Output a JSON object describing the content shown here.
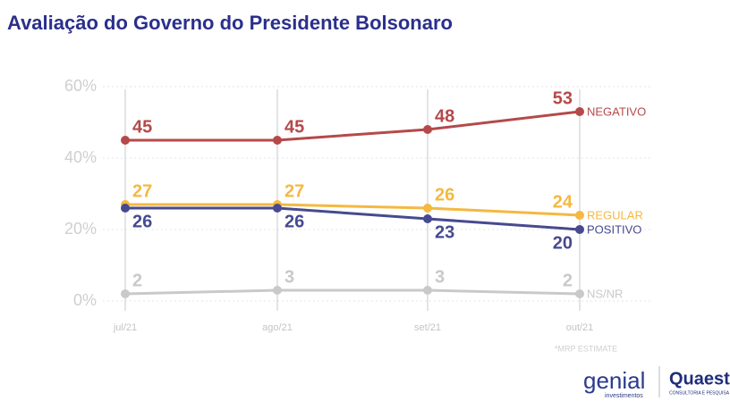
{
  "chart_data": {
    "type": "line",
    "title": "Avaliação do Governo do Presidente Bolsonaro",
    "categories": [
      "jul/21",
      "ago/21",
      "set/21",
      "out/21"
    ],
    "series": [
      {
        "name": "NEGATIVO",
        "color": "#b5494a",
        "values": [
          45,
          45,
          48,
          53
        ]
      },
      {
        "name": "REGULAR",
        "color": "#f5b841",
        "values": [
          27,
          27,
          26,
          24
        ]
      },
      {
        "name": "POSITIVO",
        "color": "#474a8f",
        "values": [
          26,
          26,
          23,
          20
        ]
      },
      {
        "name": "NS/NR",
        "color": "#c9c9c9",
        "values": [
          2,
          3,
          3,
          2
        ]
      }
    ],
    "ylim": [
      0,
      60
    ],
    "yticks": [
      {
        "value": 0,
        "label": "0%"
      },
      {
        "value": 20,
        "label": "20%"
      },
      {
        "value": 40,
        "label": "40%"
      },
      {
        "value": 60,
        "label": "60%"
      }
    ],
    "grid": true,
    "note": "*MRP ESTIMATE",
    "logos": {
      "left": "genial",
      "left_sub": "investimentos",
      "right": "Quaest",
      "right_sub": "CONSULTORIA E PESQUISA"
    }
  }
}
